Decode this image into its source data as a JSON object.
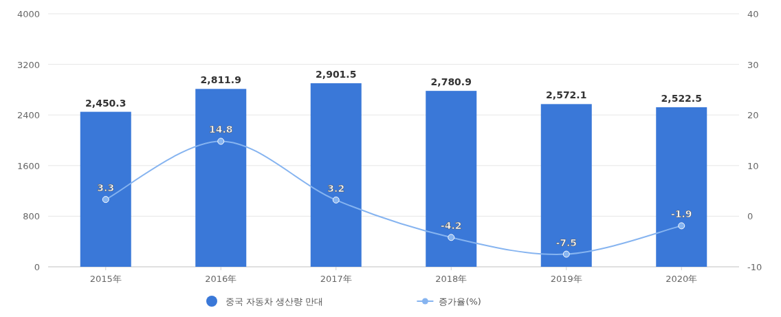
{
  "chart_data": {
    "type": "bar",
    "categories": [
      "2015年",
      "2016年",
      "2017年",
      "2018年",
      "2019年",
      "2020年"
    ],
    "series": [
      {
        "name": "중국 자동차 생산량 만대",
        "color": "#3a78d8",
        "values": [
          2450.3,
          2811.9,
          2901.5,
          2780.9,
          2572.1,
          2522.5
        ],
        "value_labels": [
          "2,450.3",
          "2,811.9",
          "2,901.5",
          "2,780.9",
          "2,572.1",
          "2,522.5"
        ]
      },
      {
        "name": "증가율(%)",
        "type": "line",
        "axis": "y2",
        "color": "#86b4f0",
        "values": [
          3.3,
          14.8,
          3.2,
          -4.2,
          -7.5,
          -1.9
        ],
        "value_labels": [
          "3.3",
          "14.8",
          "3.2",
          "-4.2",
          "-7.5",
          "-1.9"
        ]
      }
    ],
    "ylim": [
      0,
      4000
    ],
    "yticks": [
      0,
      800,
      1600,
      2400,
      3200,
      4000
    ],
    "y2lim": [
      -10,
      40
    ],
    "y2ticks": [
      -10,
      0,
      10,
      20,
      30,
      40
    ],
    "grid": "y",
    "legend": "bottom",
    "marker": "circle"
  }
}
